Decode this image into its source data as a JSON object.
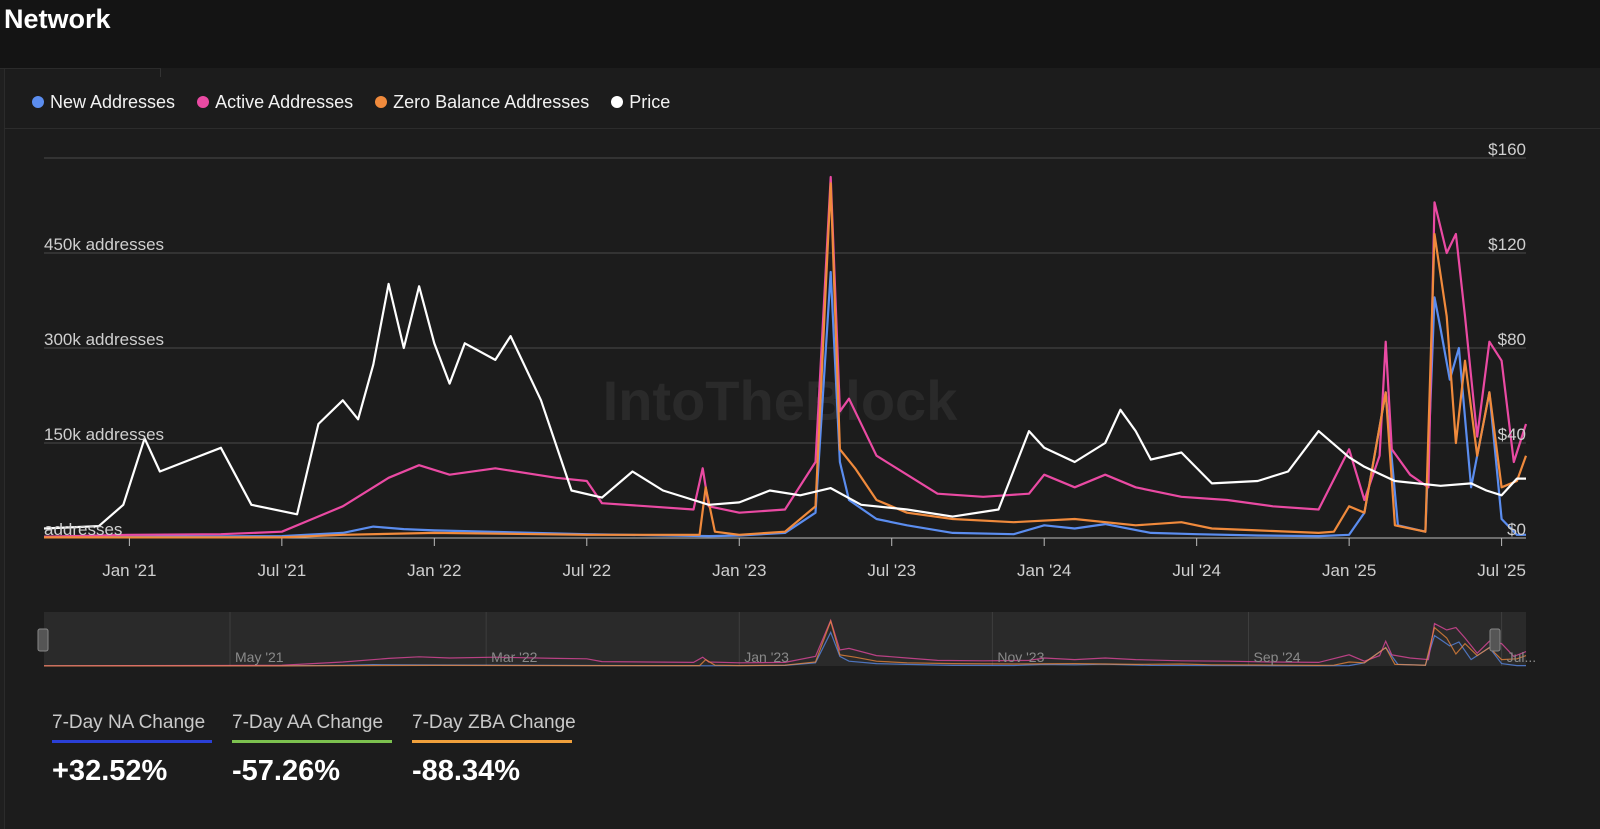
{
  "header": {
    "title": "Network"
  },
  "legend": [
    {
      "label": "New Addresses",
      "color": "#5b8def"
    },
    {
      "label": "Active Addresses",
      "color": "#ea4aa3"
    },
    {
      "label": "Zero Balance Addresses",
      "color": "#f08a3c"
    },
    {
      "label": "Price",
      "color": "#ffffff"
    }
  ],
  "watermark": "IntoTheBlock",
  "navigator": {
    "labels": [
      "May '21",
      "Mar '22",
      "Jan '23",
      "Nov '23",
      "Sep '24",
      "Jul..."
    ]
  },
  "stats": [
    {
      "label": "7-Day NA Change",
      "value": "+32.52%",
      "color": "#2a3fd6"
    },
    {
      "label": "7-Day AA Change",
      "value": "-57.26%",
      "color": "#7cc14f"
    },
    {
      "label": "7-Day ZBA Change",
      "value": "-88.34%",
      "color": "#f0a03c"
    }
  ],
  "chart_data": {
    "type": "line",
    "x_tick_labels": [
      "Jan '21",
      "Jul '21",
      "Jan '22",
      "Jul '22",
      "Jan '23",
      "Jul '23",
      "Jan '24",
      "Jul '24",
      "Jan '25",
      "Jul '25"
    ],
    "x_tick_positions": [
      2021.0,
      2021.5,
      2022.0,
      2022.5,
      2023.0,
      2023.5,
      2024.0,
      2024.5,
      2025.0,
      2025.5
    ],
    "x_range": [
      2020.72,
      2025.58
    ],
    "y_left": {
      "range": [
        0,
        600000
      ],
      "ticks": [
        0,
        150000,
        300000,
        450000
      ],
      "tick_labels": [
        "addresses",
        "150k addresses",
        "300k addresses",
        "450k addresses"
      ]
    },
    "y_right": {
      "range": [
        0,
        160
      ],
      "ticks": [
        0,
        40,
        80,
        120,
        160
      ],
      "tick_labels": [
        "$0",
        "$40",
        "$80",
        "$120",
        "$160"
      ]
    },
    "grid": true,
    "legend_position": "top-left",
    "series": [
      {
        "name": "New Addresses",
        "axis": "left",
        "color": "#5b8def",
        "points": [
          [
            2020.72,
            2000
          ],
          [
            2021.0,
            2000
          ],
          [
            2021.5,
            3000
          ],
          [
            2021.7,
            8000
          ],
          [
            2021.8,
            18000
          ],
          [
            2021.9,
            14000
          ],
          [
            2022.0,
            12000
          ],
          [
            2022.5,
            6000
          ],
          [
            2022.9,
            3000
          ],
          [
            2023.0,
            4000
          ],
          [
            2023.15,
            8000
          ],
          [
            2023.25,
            40000
          ],
          [
            2023.3,
            420000
          ],
          [
            2023.33,
            120000
          ],
          [
            2023.36,
            60000
          ],
          [
            2023.45,
            30000
          ],
          [
            2023.55,
            20000
          ],
          [
            2023.7,
            8000
          ],
          [
            2023.9,
            6000
          ],
          [
            2024.0,
            20000
          ],
          [
            2024.1,
            15000
          ],
          [
            2024.2,
            22000
          ],
          [
            2024.35,
            8000
          ],
          [
            2024.5,
            6000
          ],
          [
            2024.7,
            4000
          ],
          [
            2024.9,
            3000
          ],
          [
            2025.0,
            5000
          ],
          [
            2025.05,
            40000
          ],
          [
            2025.12,
            230000
          ],
          [
            2025.16,
            20000
          ],
          [
            2025.25,
            10000
          ],
          [
            2025.28,
            380000
          ],
          [
            2025.3,
            330000
          ],
          [
            2025.33,
            250000
          ],
          [
            2025.36,
            300000
          ],
          [
            2025.4,
            80000
          ],
          [
            2025.46,
            230000
          ],
          [
            2025.5,
            30000
          ],
          [
            2025.55,
            5000
          ],
          [
            2025.58,
            5000
          ]
        ]
      },
      {
        "name": "Active Addresses",
        "axis": "left",
        "color": "#ea4aa3",
        "points": [
          [
            2020.72,
            2000
          ],
          [
            2021.0,
            5000
          ],
          [
            2021.3,
            6000
          ],
          [
            2021.5,
            10000
          ],
          [
            2021.6,
            30000
          ],
          [
            2021.7,
            50000
          ],
          [
            2021.85,
            95000
          ],
          [
            2021.95,
            115000
          ],
          [
            2022.05,
            100000
          ],
          [
            2022.2,
            110000
          ],
          [
            2022.4,
            95000
          ],
          [
            2022.5,
            90000
          ],
          [
            2022.55,
            55000
          ],
          [
            2022.7,
            50000
          ],
          [
            2022.85,
            45000
          ],
          [
            2022.88,
            110000
          ],
          [
            2022.9,
            50000
          ],
          [
            2023.0,
            40000
          ],
          [
            2023.15,
            45000
          ],
          [
            2023.25,
            120000
          ],
          [
            2023.3,
            570000
          ],
          [
            2023.33,
            200000
          ],
          [
            2023.36,
            220000
          ],
          [
            2023.45,
            130000
          ],
          [
            2023.55,
            100000
          ],
          [
            2023.65,
            70000
          ],
          [
            2023.8,
            65000
          ],
          [
            2023.95,
            70000
          ],
          [
            2024.0,
            100000
          ],
          [
            2024.1,
            80000
          ],
          [
            2024.2,
            100000
          ],
          [
            2024.3,
            80000
          ],
          [
            2024.45,
            65000
          ],
          [
            2024.6,
            60000
          ],
          [
            2024.75,
            50000
          ],
          [
            2024.9,
            45000
          ],
          [
            2025.0,
            140000
          ],
          [
            2025.05,
            60000
          ],
          [
            2025.1,
            130000
          ],
          [
            2025.12,
            310000
          ],
          [
            2025.14,
            140000
          ],
          [
            2025.2,
            100000
          ],
          [
            2025.26,
            80000
          ],
          [
            2025.28,
            530000
          ],
          [
            2025.32,
            450000
          ],
          [
            2025.35,
            480000
          ],
          [
            2025.38,
            350000
          ],
          [
            2025.42,
            160000
          ],
          [
            2025.46,
            310000
          ],
          [
            2025.5,
            280000
          ],
          [
            2025.54,
            120000
          ],
          [
            2025.58,
            180000
          ]
        ]
      },
      {
        "name": "Zero Balance Addresses",
        "axis": "left",
        "color": "#f08a3c",
        "points": [
          [
            2020.72,
            1000
          ],
          [
            2021.5,
            1000
          ],
          [
            2021.7,
            5000
          ],
          [
            2022.0,
            8000
          ],
          [
            2022.5,
            5000
          ],
          [
            2022.87,
            5000
          ],
          [
            2022.89,
            80000
          ],
          [
            2022.92,
            10000
          ],
          [
            2023.0,
            5000
          ],
          [
            2023.15,
            10000
          ],
          [
            2023.25,
            50000
          ],
          [
            2023.3,
            560000
          ],
          [
            2023.33,
            140000
          ],
          [
            2023.38,
            110000
          ],
          [
            2023.45,
            60000
          ],
          [
            2023.55,
            40000
          ],
          [
            2023.7,
            30000
          ],
          [
            2023.9,
            25000
          ],
          [
            2024.1,
            30000
          ],
          [
            2024.3,
            20000
          ],
          [
            2024.45,
            25000
          ],
          [
            2024.55,
            15000
          ],
          [
            2024.7,
            12000
          ],
          [
            2024.9,
            8000
          ],
          [
            2024.95,
            10000
          ],
          [
            2025.0,
            50000
          ],
          [
            2025.05,
            40000
          ],
          [
            2025.12,
            230000
          ],
          [
            2025.15,
            20000
          ],
          [
            2025.25,
            10000
          ],
          [
            2025.28,
            480000
          ],
          [
            2025.32,
            350000
          ],
          [
            2025.35,
            150000
          ],
          [
            2025.38,
            280000
          ],
          [
            2025.42,
            130000
          ],
          [
            2025.46,
            230000
          ],
          [
            2025.5,
            80000
          ],
          [
            2025.55,
            90000
          ],
          [
            2025.58,
            130000
          ]
        ]
      },
      {
        "name": "Price",
        "axis": "right",
        "color": "#ffffff",
        "points": [
          [
            2020.72,
            4
          ],
          [
            2020.9,
            5
          ],
          [
            2020.98,
            14
          ],
          [
            2021.05,
            42
          ],
          [
            2021.1,
            28
          ],
          [
            2021.2,
            33
          ],
          [
            2021.3,
            38
          ],
          [
            2021.4,
            14
          ],
          [
            2021.55,
            10
          ],
          [
            2021.62,
            48
          ],
          [
            2021.7,
            58
          ],
          [
            2021.75,
            50
          ],
          [
            2021.8,
            73
          ],
          [
            2021.85,
            107
          ],
          [
            2021.9,
            80
          ],
          [
            2021.95,
            106
          ],
          [
            2022.0,
            82
          ],
          [
            2022.05,
            65
          ],
          [
            2022.1,
            82
          ],
          [
            2022.2,
            75
          ],
          [
            2022.25,
            85
          ],
          [
            2022.35,
            58
          ],
          [
            2022.45,
            20
          ],
          [
            2022.55,
            17
          ],
          [
            2022.65,
            28
          ],
          [
            2022.75,
            20
          ],
          [
            2022.85,
            16
          ],
          [
            2022.9,
            14
          ],
          [
            2023.0,
            15
          ],
          [
            2023.1,
            20
          ],
          [
            2023.2,
            18
          ],
          [
            2023.3,
            21
          ],
          [
            2023.4,
            14
          ],
          [
            2023.55,
            12
          ],
          [
            2023.7,
            9
          ],
          [
            2023.85,
            12
          ],
          [
            2023.95,
            45
          ],
          [
            2024.0,
            38
          ],
          [
            2024.1,
            32
          ],
          [
            2024.2,
            40
          ],
          [
            2024.25,
            54
          ],
          [
            2024.3,
            45
          ],
          [
            2024.35,
            33
          ],
          [
            2024.45,
            36
          ],
          [
            2024.55,
            23
          ],
          [
            2024.7,
            24
          ],
          [
            2024.8,
            28
          ],
          [
            2024.9,
            45
          ],
          [
            2025.0,
            34
          ],
          [
            2025.05,
            30
          ],
          [
            2025.15,
            24
          ],
          [
            2025.3,
            22
          ],
          [
            2025.4,
            23
          ],
          [
            2025.45,
            20
          ],
          [
            2025.5,
            18
          ],
          [
            2025.55,
            25
          ],
          [
            2025.58,
            25
          ]
        ]
      }
    ]
  }
}
